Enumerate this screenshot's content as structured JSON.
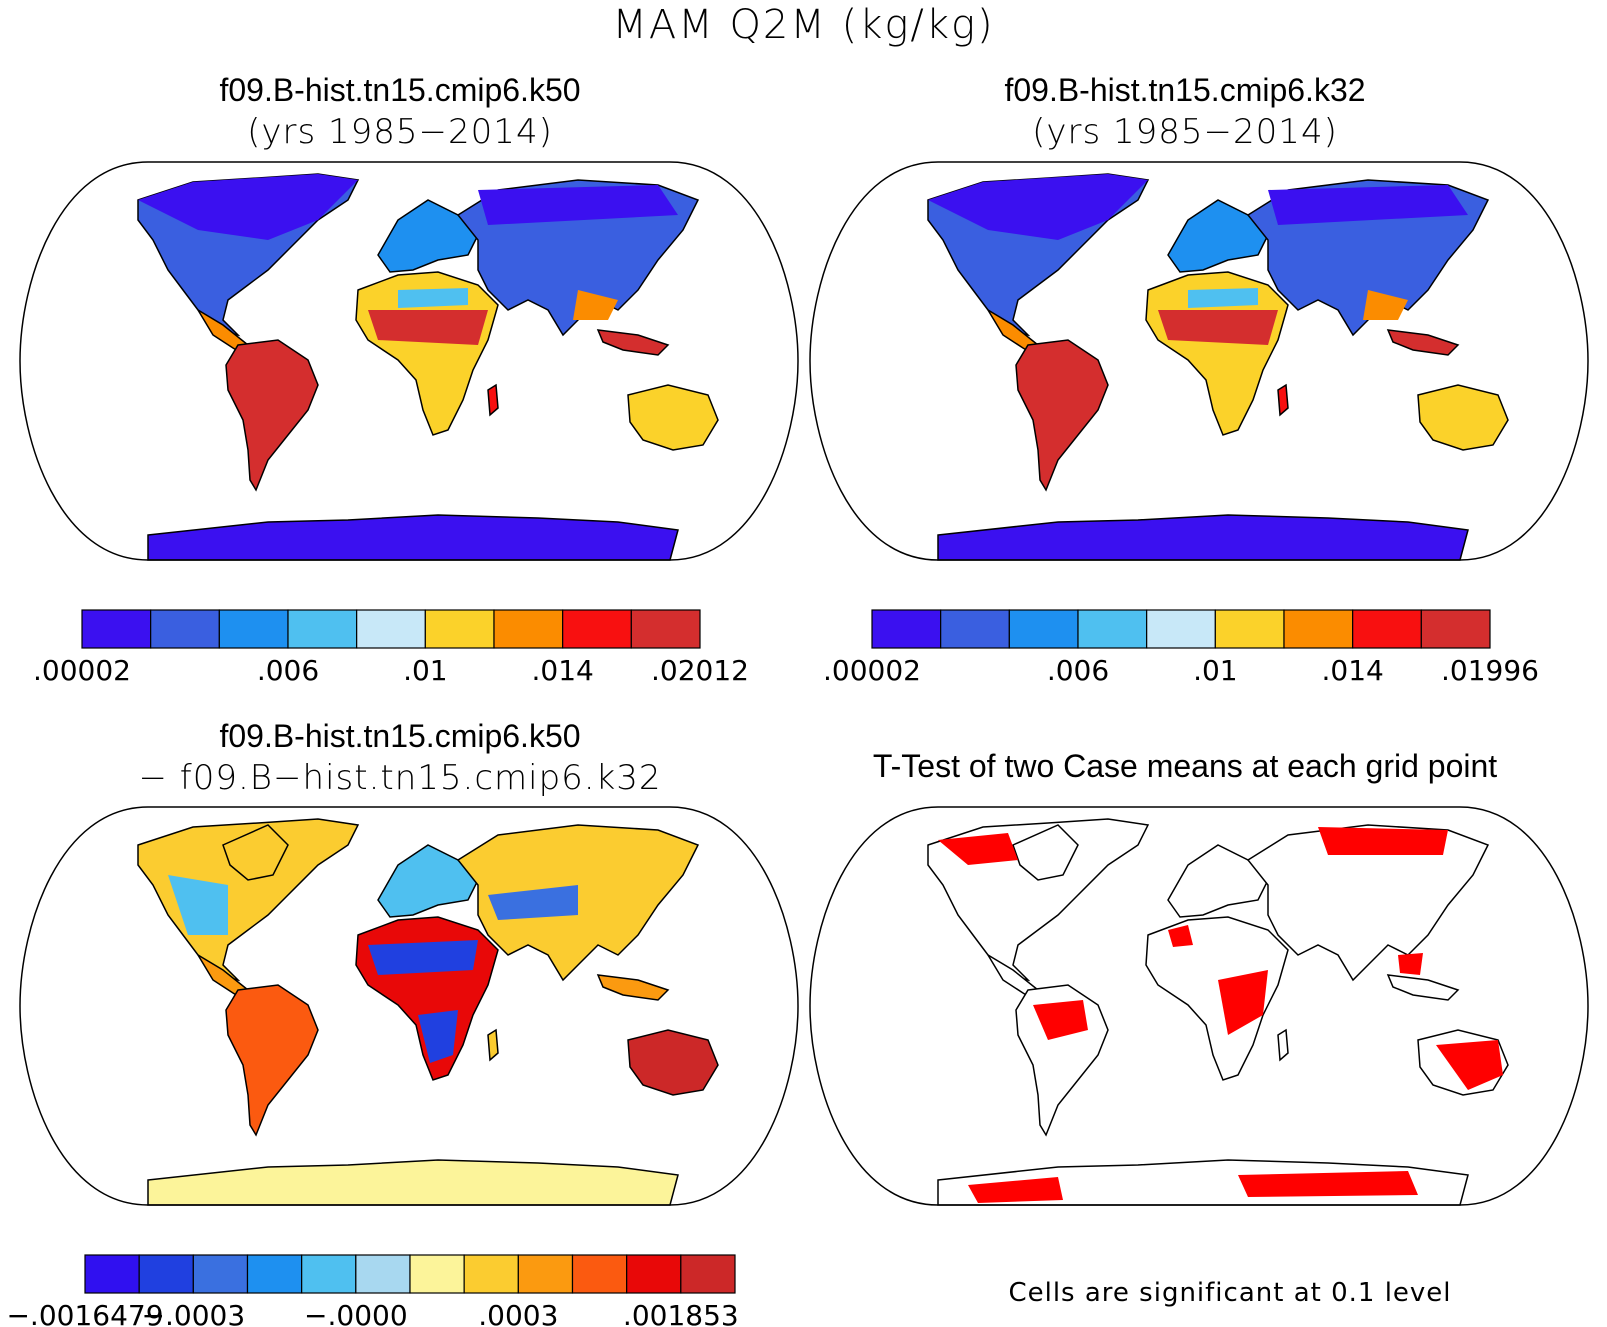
{
  "figure_title": "MAM Q2M (kg/kg)",
  "panels": [
    {
      "title": "f09.B-hist.tn15.cmip6.k50",
      "subtitle": "(yrs 1985−2014)"
    },
    {
      "title": "f09.B-hist.tn15.cmip6.k32",
      "subtitle": "(yrs 1985−2014)"
    },
    {
      "title": "f09.B-hist.tn15.cmip6.k50",
      "subtitle": "− f09.B−hist.tn15.cmip6.k32"
    },
    {
      "title": "T-Test of two Case means at each grid point",
      "subtitle": ""
    }
  ],
  "colorbars": [
    {
      "colors": [
        "#3b10f0",
        "#3a5fe0",
        "#1e90f0",
        "#4fc0f0",
        "#c8e8f8",
        "#fbd22a",
        "#fb8c00",
        "#f81010",
        "#d42e2e"
      ],
      "labels": [
        ".00002",
        ".006",
        ".01",
        ".014",
        ".02012"
      ]
    },
    {
      "colors": [
        "#3b10f0",
        "#3a5fe0",
        "#1e90f0",
        "#4fc0f0",
        "#c8e8f8",
        "#fbd22a",
        "#fb8c00",
        "#f81010",
        "#d42e2e"
      ],
      "labels": [
        ".00002",
        ".006",
        ".01",
        ".014",
        ".01996"
      ]
    },
    {
      "colors": [
        "#3010f0",
        "#2040e0",
        "#3a70e0",
        "#1e90f0",
        "#4fc0f0",
        "#a8d8f0",
        "#fcf49a",
        "#fbcc30",
        "#fb9a10",
        "#fb5a10",
        "#e80808",
        "#cc2828"
      ],
      "labels": [
        "−.0016479",
        "−.0003",
        "−.0000",
        ".0003",
        ".001853"
      ]
    }
  ],
  "significance_note": "Cells are significant at 0.1 level",
  "colors": {
    "land_outline": "#000000",
    "significant": "#ff0000",
    "ocean": "#ffffff"
  }
}
